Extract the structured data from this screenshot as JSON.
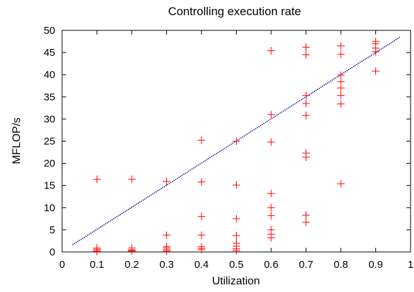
{
  "chart_data": {
    "type": "scatter",
    "title": "Controlling execution rate",
    "xlabel": "Utilization",
    "ylabel": "MFLOP/s",
    "xlim": [
      0,
      1
    ],
    "ylim": [
      0,
      50
    ],
    "x_ticks": [
      "0",
      "0.1",
      "0.2",
      "0.3",
      "0.4",
      "0.5",
      "0.6",
      "0.7",
      "0.8",
      "0.9",
      "1"
    ],
    "y_ticks": [
      "0",
      "5",
      "10",
      "15",
      "20",
      "25",
      "30",
      "35",
      "40",
      "45",
      "50"
    ],
    "grid": false,
    "legend": "none",
    "colors": {
      "points": "#ff0000",
      "line": "#00008b"
    },
    "series": [
      {
        "type": "scatter",
        "marker": "+",
        "points": [
          [
            0.1,
            16.4
          ],
          [
            0.1,
            0.9
          ],
          [
            0.1,
            0.6
          ],
          [
            0.1,
            0.3
          ],
          [
            0.1,
            0.1
          ],
          [
            0.2,
            16.4
          ],
          [
            0.2,
            0.9
          ],
          [
            0.2,
            0.5
          ],
          [
            0.2,
            0.3
          ],
          [
            0.2,
            0.2
          ],
          [
            0.3,
            15.9
          ],
          [
            0.3,
            3.8
          ],
          [
            0.3,
            1.2
          ],
          [
            0.3,
            0.9
          ],
          [
            0.3,
            0.5
          ],
          [
            0.3,
            0.2
          ],
          [
            0.4,
            25.2
          ],
          [
            0.4,
            15.8
          ],
          [
            0.4,
            8.0
          ],
          [
            0.4,
            3.8
          ],
          [
            0.4,
            1.2
          ],
          [
            0.4,
            0.8
          ],
          [
            0.4,
            0.5
          ],
          [
            0.5,
            25.0
          ],
          [
            0.5,
            15.1
          ],
          [
            0.5,
            7.5
          ],
          [
            0.5,
            3.7
          ],
          [
            0.5,
            2.0
          ],
          [
            0.5,
            1.3
          ],
          [
            0.5,
            0.7
          ],
          [
            0.5,
            0.3
          ],
          [
            0.6,
            45.4
          ],
          [
            0.6,
            31.0
          ],
          [
            0.6,
            24.8
          ],
          [
            0.6,
            13.2
          ],
          [
            0.6,
            10.0
          ],
          [
            0.6,
            8.2
          ],
          [
            0.6,
            5.0
          ],
          [
            0.6,
            4.0
          ],
          [
            0.6,
            3.2
          ],
          [
            0.7,
            46.2
          ],
          [
            0.7,
            44.5
          ],
          [
            0.7,
            35.3
          ],
          [
            0.7,
            33.5
          ],
          [
            0.7,
            30.8
          ],
          [
            0.7,
            22.3
          ],
          [
            0.7,
            21.4
          ],
          [
            0.7,
            8.3
          ],
          [
            0.7,
            6.7
          ],
          [
            0.8,
            46.5
          ],
          [
            0.8,
            44.6
          ],
          [
            0.8,
            39.9
          ],
          [
            0.8,
            38.4
          ],
          [
            0.8,
            37.0
          ],
          [
            0.8,
            35.3
          ],
          [
            0.8,
            33.4
          ],
          [
            0.8,
            15.4
          ],
          [
            0.9,
            47.5
          ],
          [
            0.9,
            47.0
          ],
          [
            0.9,
            46.0
          ],
          [
            0.9,
            45.2
          ],
          [
            0.9,
            40.8
          ]
        ]
      },
      {
        "type": "line",
        "style": "dotted",
        "points": [
          [
            0.03,
            1.6
          ],
          [
            0.97,
            48.5
          ]
        ]
      }
    ]
  }
}
